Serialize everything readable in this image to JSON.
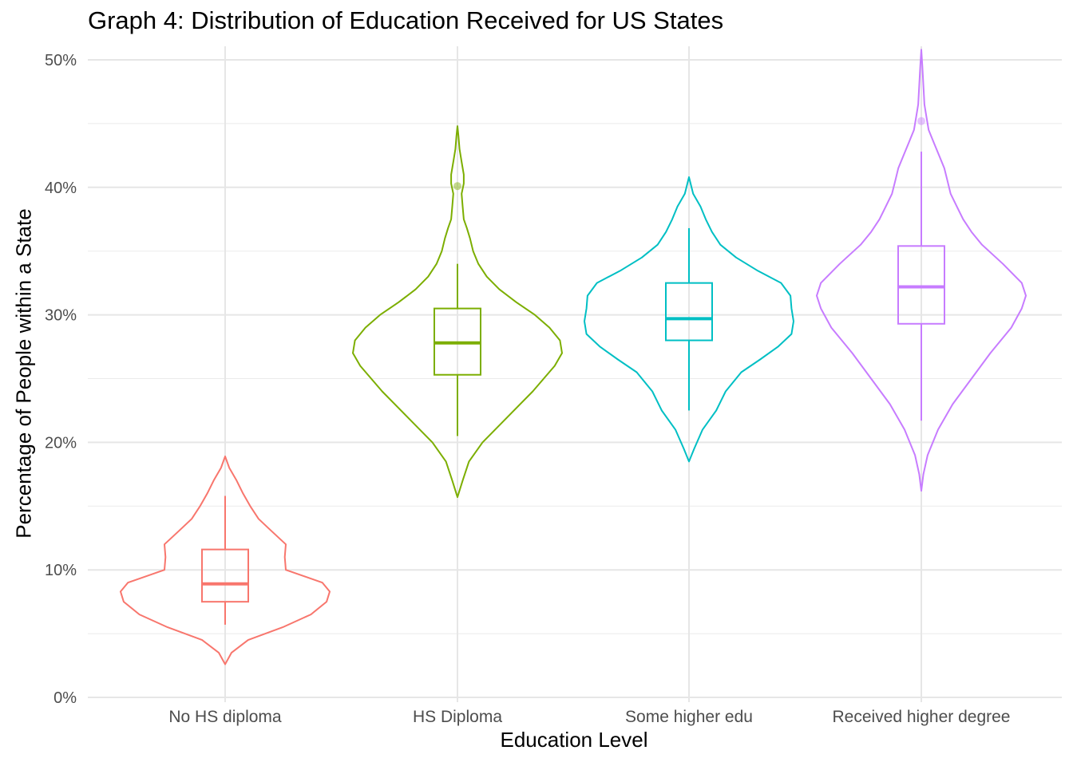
{
  "chart_data": {
    "type": "violin",
    "title": "Graph 4: Distribution of Education Received for US States",
    "xlabel": "Education Level",
    "ylabel": "Percentage of People within a State",
    "ylim": [
      0,
      50
    ],
    "yticks": [
      "0%",
      "10%",
      "20%",
      "30%",
      "40%",
      "50%"
    ],
    "grid": true,
    "legend": "none",
    "categories": [
      "No HS diploma",
      "HS Diploma",
      "Some higher edu",
      "Received higher degree"
    ],
    "colors": [
      "#F8766D",
      "#7CAE00",
      "#00BFC4",
      "#C77CFF"
    ],
    "series": [
      {
        "category": "No HS diploma",
        "box": {
          "whisker_low": 5.7,
          "q1": 7.5,
          "median": 8.9,
          "q3": 11.6,
          "whisker_high": 15.8
        },
        "outliers": [],
        "violin_min": 2.6,
        "violin_max": 18.9,
        "density": [
          [
            2.6,
            0.0
          ],
          [
            3.5,
            0.06
          ],
          [
            4.5,
            0.22
          ],
          [
            5.5,
            0.55
          ],
          [
            6.5,
            0.82
          ],
          [
            7.5,
            0.97
          ],
          [
            8.3,
            1.0
          ],
          [
            9.0,
            0.93
          ],
          [
            10.0,
            0.58
          ],
          [
            11.0,
            0.57
          ],
          [
            12.0,
            0.58
          ],
          [
            13.0,
            0.45
          ],
          [
            14.0,
            0.32
          ],
          [
            15.0,
            0.24
          ],
          [
            16.0,
            0.17
          ],
          [
            17.0,
            0.11
          ],
          [
            18.0,
            0.04
          ],
          [
            18.9,
            0.0
          ]
        ]
      },
      {
        "category": "HS Diploma",
        "box": {
          "whisker_low": 20.5,
          "q1": 25.3,
          "median": 27.8,
          "q3": 30.5,
          "whisker_high": 34.0
        },
        "outliers": [
          40.1
        ],
        "violin_min": 15.7,
        "violin_max": 44.8,
        "density": [
          [
            15.7,
            0.0
          ],
          [
            17.0,
            0.05
          ],
          [
            18.5,
            0.11
          ],
          [
            20.0,
            0.24
          ],
          [
            22.0,
            0.48
          ],
          [
            24.0,
            0.72
          ],
          [
            26.0,
            0.93
          ],
          [
            27.0,
            1.0
          ],
          [
            28.0,
            0.98
          ],
          [
            29.0,
            0.88
          ],
          [
            30.0,
            0.74
          ],
          [
            31.0,
            0.56
          ],
          [
            32.0,
            0.4
          ],
          [
            33.0,
            0.28
          ],
          [
            34.0,
            0.2
          ],
          [
            35.0,
            0.15
          ],
          [
            36.0,
            0.12
          ],
          [
            36.8,
            0.09
          ],
          [
            37.5,
            0.06
          ],
          [
            38.5,
            0.05
          ],
          [
            39.5,
            0.04
          ],
          [
            40.3,
            0.06
          ],
          [
            41.0,
            0.06
          ],
          [
            42.0,
            0.04
          ],
          [
            43.0,
            0.02
          ],
          [
            44.0,
            0.01
          ],
          [
            44.8,
            0.0
          ]
        ]
      },
      {
        "category": "Some higher edu",
        "box": {
          "whisker_low": 22.5,
          "q1": 28.0,
          "median": 29.7,
          "q3": 32.5,
          "whisker_high": 36.8
        },
        "outliers": [],
        "violin_min": 18.5,
        "violin_max": 40.8,
        "density": [
          [
            18.5,
            0.0
          ],
          [
            19.5,
            0.05
          ],
          [
            21.0,
            0.13
          ],
          [
            22.5,
            0.26
          ],
          [
            24.0,
            0.35
          ],
          [
            25.5,
            0.5
          ],
          [
            26.5,
            0.68
          ],
          [
            27.5,
            0.85
          ],
          [
            28.5,
            0.98
          ],
          [
            29.5,
            1.0
          ],
          [
            30.5,
            0.98
          ],
          [
            31.5,
            0.97
          ],
          [
            32.5,
            0.88
          ],
          [
            33.5,
            0.65
          ],
          [
            34.5,
            0.45
          ],
          [
            35.5,
            0.3
          ],
          [
            36.5,
            0.22
          ],
          [
            37.5,
            0.16
          ],
          [
            38.5,
            0.11
          ],
          [
            39.5,
            0.04
          ],
          [
            40.8,
            0.0
          ]
        ]
      },
      {
        "category": "Received higher degree",
        "box": {
          "whisker_low": 21.7,
          "q1": 29.3,
          "median": 32.2,
          "q3": 35.4,
          "whisker_high": 42.8
        },
        "outliers": [
          45.2
        ],
        "violin_min": 16.2,
        "violin_max": 50.8,
        "density": [
          [
            16.2,
            0.0
          ],
          [
            17.5,
            0.02
          ],
          [
            19.0,
            0.06
          ],
          [
            21.0,
            0.16
          ],
          [
            23.0,
            0.3
          ],
          [
            25.0,
            0.48
          ],
          [
            27.0,
            0.66
          ],
          [
            29.0,
            0.86
          ],
          [
            30.5,
            0.96
          ],
          [
            31.5,
            1.0
          ],
          [
            32.5,
            0.96
          ],
          [
            34.0,
            0.78
          ],
          [
            35.5,
            0.58
          ],
          [
            36.5,
            0.48
          ],
          [
            37.5,
            0.4
          ],
          [
            38.5,
            0.34
          ],
          [
            39.5,
            0.28
          ],
          [
            40.5,
            0.25
          ],
          [
            41.5,
            0.22
          ],
          [
            42.5,
            0.17
          ],
          [
            43.5,
            0.12
          ],
          [
            44.5,
            0.07
          ],
          [
            45.5,
            0.05
          ],
          [
            46.5,
            0.03
          ],
          [
            48.0,
            0.02
          ],
          [
            49.5,
            0.01
          ],
          [
            50.8,
            0.0
          ]
        ]
      }
    ]
  }
}
